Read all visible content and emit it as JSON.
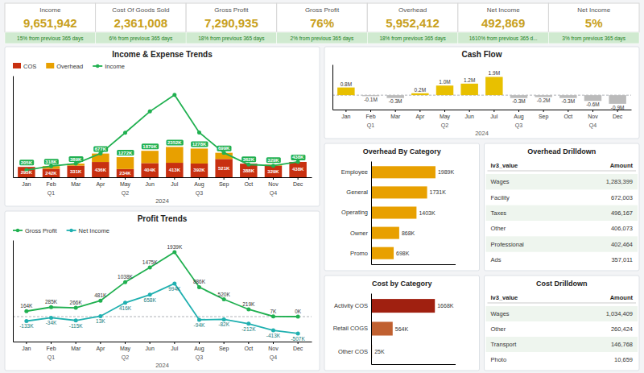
{
  "chart_data": [
    {
      "type": "kpi",
      "categories": [
        "Income",
        "Cost Of Goods Sold",
        "Gross Profit",
        "Gross Profit",
        "Overhead",
        "Net Income",
        "Net Income"
      ],
      "values": [
        9651942,
        2361008,
        7290935,
        76,
        5952412,
        492869,
        5
      ],
      "value_labels": [
        "9,651,942",
        "2,361,008",
        "7,290,935",
        "76%",
        "5,952,412",
        "492,869",
        "5%"
      ],
      "annotations": [
        "15% from previous 365 days",
        "6% from previous 365 days",
        "18% from previous 365 days",
        "2% from previous 365 days",
        "18% from previous 365 days",
        "1610% from previous 365 d...",
        "3% from previous 365 days"
      ],
      "color": "#c8a020"
    },
    {
      "type": "bar",
      "title": "Income & Expense Trends",
      "categories": [
        "Jan",
        "Feb",
        "Mar",
        "Apr",
        "May",
        "Jun",
        "Jul",
        "Aug",
        "Sep",
        "Oct",
        "Nov",
        "Dec"
      ],
      "annotations": [
        "Q1",
        "Q2",
        "Q3",
        "Q4"
      ],
      "x_label": "2024",
      "stacked": true,
      "ylim": [
        0,
        2900
      ],
      "tick_labels": "x",
      "legend": "upper left",
      "series": [
        {
          "name": "COS",
          "type": "bar",
          "color": "#c83010",
          "values": [
            295,
            242,
            331,
            436,
            234,
            404,
            413,
            392,
            521,
            388,
            329,
            438
          ],
          "data_labels": true,
          "value_labels": [
            "295K",
            "242K",
            "331K",
            "436K",
            "234K",
            "404K",
            "413K",
            "392K",
            "521K",
            "388K",
            "329K",
            "438K"
          ]
        },
        {
          "name": "Overhead",
          "type": "bar",
          "color": "#e8a000",
          "values": [
            0,
            76,
            58,
            241,
            339,
            351,
            452,
            427,
            178,
            0,
            33,
            0
          ]
        },
        {
          "name": "Income",
          "type": "line",
          "color": "#20b050",
          "marker": "circle",
          "values": [
            205,
            318,
            389,
            677,
            1272,
            1879,
            2352,
            1278,
            699,
            362,
            329,
            438
          ],
          "data_labels": true,
          "value_labels": [
            "205K",
            "318K",
            "389K",
            "677K",
            "1272K",
            "1879K",
            "2352K",
            "1278K",
            "699K",
            "362K",
            "329K",
            "438K"
          ]
        }
      ]
    },
    {
      "type": "line",
      "title": "Profit Trends",
      "categories": [
        "Jan",
        "Feb",
        "Mar",
        "Apr",
        "May",
        "Jun",
        "Jul",
        "Aug",
        "Sep",
        "Oct",
        "Nov",
        "Dec"
      ],
      "annotations": [
        "Q1",
        "Q2",
        "Q3",
        "Q4"
      ],
      "x_label": "2024",
      "ylim": [
        -750,
        2300
      ],
      "yticks": [
        0
      ],
      "grid": true,
      "tick_labels": "x",
      "legend": "upper left",
      "series": [
        {
          "name": "Gross Profit",
          "type": "line",
          "color": "#20b050",
          "marker": "circle",
          "values": [
            164,
            285,
            266,
            481,
            1038,
            1475,
            1939,
            886,
            520,
            219,
            7,
            0
          ],
          "data_labels": true,
          "value_labels": [
            "164K",
            "285K",
            "266K",
            "481K",
            "1038K",
            "1475K",
            "1939K",
            "886K",
            "520K",
            "219K",
            "7K",
            "0K"
          ]
        },
        {
          "name": "Net Income",
          "type": "line",
          "color": "#20b0b0",
          "marker": "circle",
          "values": [
            -133,
            -34,
            -115,
            13,
            416,
            658,
            994,
            -94,
            -82,
            -212,
            -413,
            -507
          ],
          "data_labels": true,
          "value_labels": [
            "-133K",
            "-34K",
            "-115K",
            "13K",
            "416K",
            "658K",
            "994K",
            "-94K",
            "-82K",
            "-212K",
            "-413K",
            "-507K"
          ]
        }
      ]
    },
    {
      "type": "bar",
      "title": "Cash Flow",
      "categories": [
        "Jan",
        "Feb",
        "Mar",
        "Apr",
        "May",
        "Jun",
        "Jul",
        "Aug",
        "Sep",
        "Oct",
        "Nov",
        "Dec"
      ],
      "annotations": [
        "Q1",
        "Q2",
        "Q3",
        "Q4"
      ],
      "x_label": "2024",
      "values": [
        0.8,
        -0.1,
        -0.3,
        0.2,
        1.0,
        1.2,
        1.9,
        -0.3,
        -0.2,
        -0.3,
        -0.6,
        -0.9
      ],
      "colors": [
        "#e8c000",
        "#bbbbbb",
        "#bbbbbb",
        "#e8c000",
        "#e8c000",
        "#e8c000",
        "#e8c000",
        "#bbbbbb",
        "#bbbbbb",
        "#bbbbbb",
        "#bbbbbb",
        "#bbbbbb"
      ],
      "data_labels": true,
      "value_labels": [
        "0.8M",
        "-0.1M",
        "-0.3M",
        "0.2M",
        "1.0M",
        "1.2M",
        "1.9M",
        "-0.3M",
        "-0.2M",
        "-0.3M",
        "-0.6M",
        "-0.9M"
      ],
      "ylim": [
        -1.5,
        3.2
      ],
      "yticks": [
        0
      ],
      "grid": true,
      "tick_labels": "x"
    },
    {
      "type": "bar",
      "title": "Overhead By Category",
      "orientation": "horizontal",
      "categories": [
        "Employee",
        "General",
        "Operating",
        "Owner",
        "Promo"
      ],
      "values": [
        1989,
        1731,
        1403,
        868,
        698
      ],
      "color": "#e8a000",
      "data_labels": true,
      "value_labels": [
        "1989K",
        "1731K",
        "1403K",
        "868K",
        "698K"
      ],
      "xlim": [
        0,
        2600
      ],
      "tick_labels": "y"
    },
    {
      "type": "table",
      "title": "Overhead Drilldown",
      "x_label": "lv3_value",
      "y_label": "Amount",
      "categories": [
        "Wages",
        "Facility",
        "Taxes",
        "Other",
        "Professional",
        "Ads"
      ],
      "values": [
        1283399,
        672003,
        496167,
        406073,
        402464,
        357011
      ],
      "value_labels": [
        "1,283,399",
        "672,003",
        "496,167",
        "406,073",
        "402,464",
        "357,011"
      ]
    },
    {
      "type": "bar",
      "title": "Cost by Category",
      "orientation": "horizontal",
      "categories": [
        "Activity COS",
        "Retail COGS",
        "Other COS"
      ],
      "values": [
        1668,
        564,
        25
      ],
      "colors": [
        "#a02010",
        "#c06030",
        "#d09060"
      ],
      "data_labels": true,
      "value_labels": [
        "1668K",
        "564K",
        "25K"
      ],
      "xlim": [
        0,
        2200
      ],
      "tick_labels": "y"
    },
    {
      "type": "table",
      "title": "Cost Drilldown",
      "x_label": "lv3_value",
      "y_label": "Amount",
      "categories": [
        "Wages",
        "Other",
        "Transport",
        "Photo"
      ],
      "values": [
        1034409,
        260424,
        146768,
        10659
      ],
      "value_labels": [
        "1,034,409",
        "260,424",
        "146,768",
        "10,659"
      ]
    }
  ]
}
